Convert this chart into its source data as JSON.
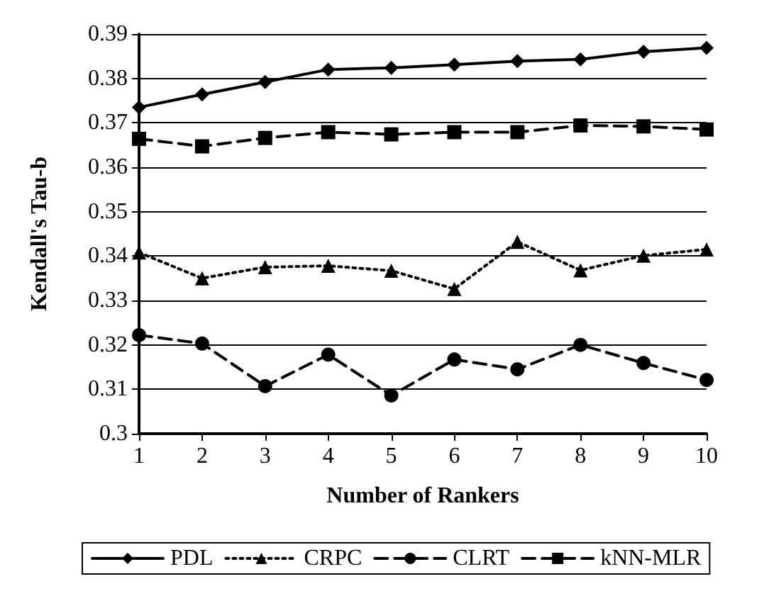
{
  "chart_data": {
    "type": "line",
    "xlabel": "Number of Rankers",
    "ylabel": "Kendall's Tau-b",
    "x": [
      1,
      2,
      3,
      4,
      5,
      6,
      7,
      8,
      9,
      10
    ],
    "xlim": [
      1,
      10
    ],
    "xticks": [
      1,
      2,
      3,
      4,
      5,
      6,
      7,
      8,
      9,
      10
    ],
    "ylim": [
      0.3,
      0.39
    ],
    "yticks": [
      0.3,
      0.31,
      0.32,
      0.33,
      0.34,
      0.35,
      0.36,
      0.37,
      0.38,
      0.39
    ],
    "grid": "y",
    "legend": "bottom",
    "series": [
      {
        "name": "PDL",
        "color": "#000000",
        "marker": "diamond",
        "line_style": "solid",
        "values": [
          0.3735,
          0.3764,
          0.3792,
          0.382,
          0.3824,
          0.3831,
          0.3839,
          0.3843,
          0.386,
          0.3869
        ]
      },
      {
        "name": "CRPC",
        "color": "#000000",
        "marker": "triangle",
        "line_style": "dotted",
        "values": [
          0.3408,
          0.335,
          0.3375,
          0.3378,
          0.3367,
          0.3326,
          0.3432,
          0.3368,
          0.3401,
          0.3415
        ]
      },
      {
        "name": "CLRT",
        "color": "#000000",
        "marker": "circle",
        "line_style": "dashed",
        "values": [
          0.3222,
          0.3203,
          0.3107,
          0.3178,
          0.3086,
          0.3167,
          0.3145,
          0.32,
          0.3159,
          0.3121
        ]
      },
      {
        "name": "kNN-MLR",
        "color": "#000000",
        "marker": "square",
        "line_style": "dashed",
        "values": [
          0.3664,
          0.3647,
          0.3666,
          0.3679,
          0.3674,
          0.3679,
          0.3679,
          0.3694,
          0.3692,
          0.3685
        ]
      }
    ]
  }
}
